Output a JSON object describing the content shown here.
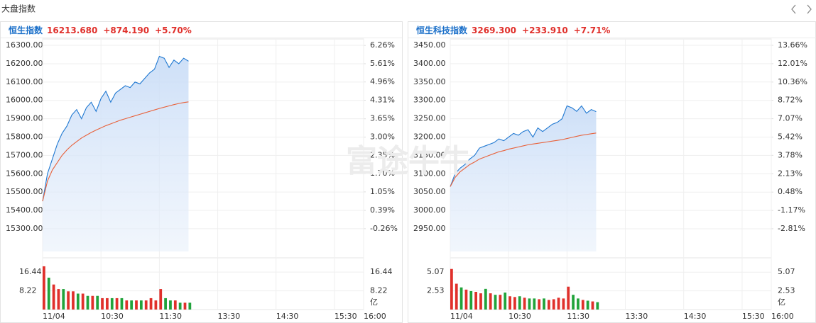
{
  "header": {
    "title": "大盘指数"
  },
  "watermark": "富途牛牛",
  "chart_data": [
    {
      "type": "line",
      "title": "恒生指数",
      "last": {
        "value": 16213.68,
        "label": "16213.680"
      },
      "change": {
        "value": 874.19,
        "label": "+874.190"
      },
      "change_pct": {
        "value": 5.7,
        "label": "+5.70%"
      },
      "up_color": "#e0302b",
      "down_color": "#21a33b",
      "title_color": "#1a6fc9",
      "x": [
        "09:30",
        "09:35",
        "09:40",
        "09:45",
        "09:50",
        "09:55",
        "10:00",
        "10:05",
        "10:10",
        "10:15",
        "10:20",
        "10:25",
        "10:30",
        "10:35",
        "10:40",
        "10:45",
        "10:50",
        "10:55",
        "11:00",
        "11:05",
        "11:10",
        "11:15",
        "11:20",
        "11:25",
        "11:30",
        "11:35",
        "11:40",
        "11:45",
        "11:50",
        "11:55",
        "12:00"
      ],
      "xlim": [
        "09:30",
        "16:00"
      ],
      "xticks": [
        {
          "value": "09:30",
          "label": "11/04"
        },
        "10:30",
        "11:30",
        "13:30",
        "14:30",
        "15:30",
        "16:00"
      ],
      "series": [
        {
          "color": "#1f78d1",
          "values": [
            15450,
            15600,
            15680,
            15760,
            15820,
            15860,
            15920,
            15950,
            15900,
            15960,
            15990,
            15940,
            16010,
            16050,
            15990,
            16040,
            16060,
            16080,
            16070,
            16100,
            16090,
            16120,
            16150,
            16170,
            16240,
            16230,
            16180,
            16220,
            16200,
            16230,
            16213.68
          ]
        },
        {
          "color": "#e8613a",
          "values": [
            15450,
            15560,
            15620,
            15660,
            15700,
            15730,
            15755,
            15775,
            15795,
            15810,
            15825,
            15838,
            15850,
            15862,
            15872,
            15882,
            15892,
            15900,
            15908,
            15916,
            15924,
            15932,
            15940,
            15948,
            15956,
            15963,
            15970,
            15977,
            15983,
            15988,
            15992
          ]
        }
      ],
      "ylim": [
        15176,
        16335
      ],
      "yticks": [
        {
          "value": 16300,
          "label": "16300.00"
        },
        {
          "value": 16200,
          "label": "16200.00"
        },
        {
          "value": 16100,
          "label": "16100.00"
        },
        {
          "value": 16000,
          "label": "16000.00"
        },
        {
          "value": 15900,
          "label": "15900.00"
        },
        {
          "value": 15800,
          "label": "15800.00"
        },
        {
          "value": 15700,
          "label": "15700.00"
        },
        {
          "value": 15600,
          "label": "15600.00"
        },
        {
          "value": 15500,
          "label": "15500.00"
        },
        {
          "value": 15400,
          "label": "15400.00"
        },
        {
          "value": 15300,
          "label": "15300.00"
        }
      ],
      "y2lim": [
        -1.07,
        6.49
      ],
      "y2ticks": [
        {
          "value": 6.26,
          "label": "6.26%"
        },
        {
          "value": 5.61,
          "label": "5.61%"
        },
        {
          "value": 4.96,
          "label": "4.96%"
        },
        {
          "value": 4.31,
          "label": "4.31%"
        },
        {
          "value": 3.65,
          "label": "3.65%"
        },
        {
          "value": 3.0,
          "label": "3.00%"
        },
        {
          "value": 2.35,
          "label": "2.35%"
        },
        {
          "value": 1.7,
          "label": "1.70%"
        },
        {
          "value": 1.05,
          "label": "1.05%"
        },
        {
          "value": 0.39,
          "label": "0.39%"
        },
        {
          "value": -0.26,
          "label": "-0.26%"
        }
      ],
      "volume": {
        "unit": "亿",
        "ylim": [
          0,
          20.23
        ],
        "yticks": [
          16.44,
          8.22
        ],
        "values": [
          19,
          14,
          11,
          9,
          9,
          8,
          8,
          7,
          7,
          6,
          6,
          6,
          5,
          5,
          5,
          5,
          5,
          4,
          4,
          4,
          4,
          4,
          5,
          4,
          9,
          5,
          4,
          4,
          3,
          3,
          3
        ],
        "colors": [
          "#e0302b",
          "#21a33b",
          "#e0302b",
          "#e0302b",
          "#21a33b",
          "#e0302b",
          "#e0302b",
          "#21a33b",
          "#e0302b",
          "#21a33b",
          "#e0302b",
          "#21a33b",
          "#e0302b",
          "#e0302b",
          "#21a33b",
          "#e0302b",
          "#21a33b",
          "#e0302b",
          "#21a33b",
          "#e0302b",
          "#21a33b",
          "#e0302b",
          "#e0302b",
          "#e0302b",
          "#e0302b",
          "#21a33b",
          "#21a33b",
          "#e0302b",
          "#21a33b",
          "#e0302b",
          "#21a33b"
        ]
      }
    },
    {
      "type": "line",
      "title": "恒生科技指数",
      "last": {
        "value": 3269.3,
        "label": "3269.300"
      },
      "change": {
        "value": 233.91,
        "label": "+233.910"
      },
      "change_pct": {
        "value": 7.71,
        "label": "+7.71%"
      },
      "up_color": "#e0302b",
      "down_color": "#21a33b",
      "title_color": "#1a6fc9",
      "x": [
        "09:30",
        "09:35",
        "09:40",
        "09:45",
        "09:50",
        "09:55",
        "10:00",
        "10:05",
        "10:10",
        "10:15",
        "10:20",
        "10:25",
        "10:30",
        "10:35",
        "10:40",
        "10:45",
        "10:50",
        "10:55",
        "11:00",
        "11:05",
        "11:10",
        "11:15",
        "11:20",
        "11:25",
        "11:30",
        "11:35",
        "11:40",
        "11:45",
        "11:50",
        "11:55",
        "12:00"
      ],
      "xlim": [
        "09:30",
        "16:00"
      ],
      "xticks": [
        {
          "value": "09:30",
          "label": "11/04"
        },
        "10:30",
        "11:30",
        "13:30",
        "14:30",
        "15:30",
        "16:00"
      ],
      "series": [
        {
          "color": "#1f78d1",
          "values": [
            3065,
            3100,
            3115,
            3125,
            3140,
            3150,
            3170,
            3175,
            3180,
            3185,
            3195,
            3190,
            3200,
            3210,
            3205,
            3215,
            3220,
            3200,
            3225,
            3215,
            3225,
            3235,
            3240,
            3250,
            3285,
            3280,
            3270,
            3285,
            3265,
            3275,
            3269.3
          ]
        },
        {
          "color": "#e8613a",
          "values": [
            3065,
            3090,
            3105,
            3115,
            3125,
            3132,
            3140,
            3145,
            3150,
            3155,
            3160,
            3163,
            3167,
            3170,
            3173,
            3176,
            3179,
            3181,
            3183,
            3185,
            3187,
            3189,
            3191,
            3193,
            3196,
            3199,
            3202,
            3205,
            3207,
            3209,
            3211
          ]
        }
      ],
      "ylim": [
        2888.2,
        3467.4
      ],
      "yticks": [
        {
          "value": 3450,
          "label": "3450.00"
        },
        {
          "value": 3400,
          "label": "3400.00"
        },
        {
          "value": 3350,
          "label": "3350.00"
        },
        {
          "value": 3300,
          "label": "3300.00"
        },
        {
          "value": 3250,
          "label": "3250.00"
        },
        {
          "value": 3200,
          "label": "3200.00"
        },
        {
          "value": 3150,
          "label": "3150.00"
        },
        {
          "value": 3100,
          "label": "3100.00"
        },
        {
          "value": 3050,
          "label": "3050.00"
        },
        {
          "value": 3000,
          "label": "3000.00"
        },
        {
          "value": 2950,
          "label": "2950.00"
        }
      ],
      "y2lim": [
        -4.85,
        14.23
      ],
      "y2ticks": [
        {
          "value": 13.66,
          "label": "13.66%"
        },
        {
          "value": 12.01,
          "label": "12.01%"
        },
        {
          "value": 10.36,
          "label": "10.36%"
        },
        {
          "value": 8.72,
          "label": "8.72%"
        },
        {
          "value": 7.07,
          "label": "7.07%"
        },
        {
          "value": 5.42,
          "label": "5.42%"
        },
        {
          "value": 3.78,
          "label": "3.78%"
        },
        {
          "value": 2.13,
          "label": "2.13%"
        },
        {
          "value": 0.48,
          "label": "0.48%"
        },
        {
          "value": -1.17,
          "label": "-1.17%"
        },
        {
          "value": -2.81,
          "label": "-2.81%"
        }
      ],
      "volume": {
        "unit": "亿",
        "ylim": [
          0,
          6.24
        ],
        "yticks": [
          5.07,
          2.53
        ],
        "values": [
          5.5,
          3.5,
          3,
          2.7,
          2.5,
          2.4,
          2.2,
          2.8,
          2.2,
          2,
          2,
          2.3,
          1.8,
          1.7,
          1.8,
          1.6,
          1.5,
          1.5,
          1.4,
          1.5,
          1.3,
          1.4,
          1.6,
          1.5,
          3.1,
          2,
          1.5,
          1.3,
          1.2,
          1.1,
          1.0
        ],
        "colors": [
          "#e0302b",
          "#e0302b",
          "#21a33b",
          "#e0302b",
          "#21a33b",
          "#e0302b",
          "#e0302b",
          "#21a33b",
          "#e0302b",
          "#21a33b",
          "#e0302b",
          "#21a33b",
          "#e0302b",
          "#e0302b",
          "#21a33b",
          "#e0302b",
          "#21a33b",
          "#21a33b",
          "#e0302b",
          "#21a33b",
          "#e0302b",
          "#e0302b",
          "#e0302b",
          "#e0302b",
          "#e0302b",
          "#21a33b",
          "#21a33b",
          "#e0302b",
          "#21a33b",
          "#e0302b",
          "#21a33b"
        ]
      }
    }
  ]
}
